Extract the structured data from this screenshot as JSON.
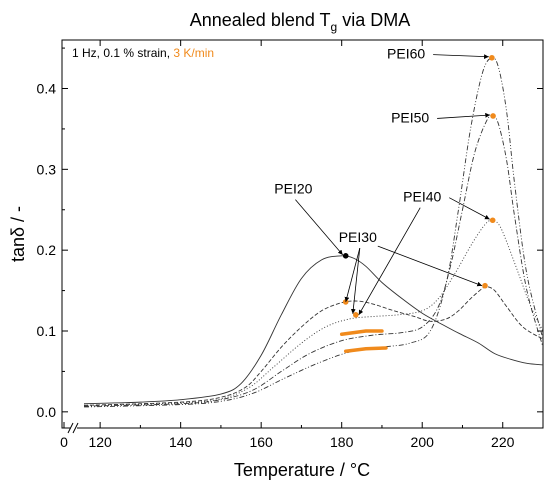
{
  "chart_data": {
    "type": "line",
    "title": "Annealed blend T",
    "title_subscript": "g",
    "title_suffix": " via DMA",
    "xlabel": "Temperature  /  °C",
    "ylabel": "tanδ  /  -",
    "xlim": [
      115,
      230
    ],
    "ylim": [
      -0.02,
      0.46
    ],
    "x_break_tick": "0",
    "x_ticks": [
      "120",
      "140",
      "160",
      "180",
      "200",
      "220"
    ],
    "y_ticks": [
      "0.0",
      "0.1",
      "0.2",
      "0.3",
      "0.4"
    ],
    "conditions": {
      "prefix": "1 Hz, 0.1 % strain, ",
      "rate": "3 K/min"
    },
    "colors": {
      "curve": "#333333",
      "marker_orange": "#f08a1c",
      "marker_black": "#000000",
      "tg_bar": "#f08a1c"
    },
    "series": [
      {
        "name": "PEI20",
        "dash": "solid",
        "points": [
          [
            116,
            0.01
          ],
          [
            130,
            0.012
          ],
          [
            140,
            0.015
          ],
          [
            150,
            0.022
          ],
          [
            155,
            0.035
          ],
          [
            160,
            0.07
          ],
          [
            165,
            0.12
          ],
          [
            170,
            0.165
          ],
          [
            175,
            0.188
          ],
          [
            180,
            0.193
          ],
          [
            183,
            0.19
          ],
          [
            186,
            0.18
          ],
          [
            190,
            0.16
          ],
          [
            195,
            0.14
          ],
          [
            200,
            0.122
          ],
          [
            205,
            0.108
          ],
          [
            208,
            0.1
          ],
          [
            210,
            0.095
          ],
          [
            214,
            0.085
          ],
          [
            218,
            0.072
          ],
          [
            222,
            0.065
          ],
          [
            226,
            0.06
          ],
          [
            230,
            0.058
          ]
        ],
        "marker": {
          "x": 181,
          "y": 0.193,
          "color": "black"
        }
      },
      {
        "name": "PEI30",
        "dash": "dashed",
        "points": [
          [
            116,
            0.008
          ],
          [
            140,
            0.012
          ],
          [
            150,
            0.018
          ],
          [
            156,
            0.03
          ],
          [
            160,
            0.05
          ],
          [
            165,
            0.08
          ],
          [
            170,
            0.105
          ],
          [
            175,
            0.125
          ],
          [
            180,
            0.135
          ],
          [
            184,
            0.137
          ],
          [
            188,
            0.133
          ],
          [
            193,
            0.125
          ],
          [
            198,
            0.118
          ],
          [
            202,
            0.112
          ],
          [
            206,
            0.115
          ],
          [
            209,
            0.125
          ],
          [
            212,
            0.14
          ],
          [
            215,
            0.153
          ],
          [
            216,
            0.155
          ],
          [
            218,
            0.15
          ],
          [
            221,
            0.13
          ],
          [
            225,
            0.105
          ],
          [
            230,
            0.09
          ]
        ],
        "marker": {
          "x": 215.6,
          "y": 0.156,
          "color": "orange"
        }
      },
      {
        "name": "PEI40",
        "dash": "dotted",
        "points": [
          [
            116,
            0.008
          ],
          [
            140,
            0.011
          ],
          [
            150,
            0.016
          ],
          [
            157,
            0.03
          ],
          [
            163,
            0.055
          ],
          [
            170,
            0.085
          ],
          [
            176,
            0.105
          ],
          [
            182,
            0.115
          ],
          [
            188,
            0.118
          ],
          [
            194,
            0.12
          ],
          [
            200,
            0.125
          ],
          [
            204,
            0.14
          ],
          [
            208,
            0.17
          ],
          [
            212,
            0.205
          ],
          [
            215,
            0.228
          ],
          [
            217,
            0.237
          ],
          [
            219,
            0.232
          ],
          [
            221,
            0.21
          ],
          [
            224,
            0.17
          ],
          [
            227,
            0.13
          ],
          [
            230,
            0.1
          ]
        ],
        "marker": {
          "x": 217.5,
          "y": 0.237,
          "color": "orange"
        }
      },
      {
        "name": "PEI50",
        "dash": "dashdot",
        "points": [
          [
            116,
            0.007
          ],
          [
            140,
            0.01
          ],
          [
            150,
            0.015
          ],
          [
            158,
            0.027
          ],
          [
            165,
            0.05
          ],
          [
            172,
            0.072
          ],
          [
            180,
            0.088
          ],
          [
            188,
            0.095
          ],
          [
            195,
            0.098
          ],
          [
            200,
            0.105
          ],
          [
            204,
            0.13
          ],
          [
            207,
            0.18
          ],
          [
            210,
            0.25
          ],
          [
            213,
            0.32
          ],
          [
            216,
            0.36
          ],
          [
            217.6,
            0.366
          ],
          [
            219,
            0.355
          ],
          [
            221,
            0.31
          ],
          [
            223,
            0.24
          ],
          [
            226,
            0.15
          ],
          [
            230,
            0.08
          ]
        ],
        "marker": {
          "x": 217.6,
          "y": 0.366,
          "color": "orange"
        }
      },
      {
        "name": "PEI60",
        "dash": "dashdotdot",
        "points": [
          [
            116,
            0.006
          ],
          [
            140,
            0.009
          ],
          [
            150,
            0.013
          ],
          [
            158,
            0.023
          ],
          [
            166,
            0.042
          ],
          [
            174,
            0.06
          ],
          [
            182,
            0.074
          ],
          [
            190,
            0.08
          ],
          [
            197,
            0.085
          ],
          [
            202,
            0.1
          ],
          [
            206,
            0.16
          ],
          [
            209,
            0.25
          ],
          [
            212,
            0.35
          ],
          [
            215,
            0.42
          ],
          [
            217.3,
            0.438
          ],
          [
            219,
            0.425
          ],
          [
            221,
            0.37
          ],
          [
            223,
            0.28
          ],
          [
            226,
            0.17
          ],
          [
            230,
            0.09
          ]
        ],
        "marker": {
          "x": 217.3,
          "y": 0.438,
          "color": "orange"
        }
      }
    ],
    "annotations": [
      {
        "label": "PEI60",
        "text_x": 196,
        "text_y": 0.437,
        "points_to": [
          217.3,
          0.438
        ]
      },
      {
        "label": "PEI50",
        "text_x": 197,
        "text_y": 0.358,
        "points_to": [
          217.6,
          0.366
        ]
      },
      {
        "label": "PEI40",
        "text_x": 200,
        "text_y": 0.26,
        "points_to": [
          217.5,
          0.237
        ]
      },
      {
        "label": "PEI30",
        "text_x": 184,
        "text_y": 0.21,
        "points_to": [
          183.5,
          0.12
        ]
      },
      {
        "label": "PEI20",
        "text_x": 168,
        "text_y": 0.27,
        "points_to": [
          181,
          0.193
        ]
      }
    ],
    "extra_markers": [
      {
        "x": 181,
        "y": 0.136,
        "color": "orange"
      },
      {
        "x": 183.5,
        "y": 0.12,
        "color": "orange"
      }
    ],
    "tg_bars": [
      {
        "x": [
          180,
          186,
          190
        ],
        "y": [
          0.096,
          0.1,
          0.1
        ]
      },
      {
        "x": [
          181,
          186,
          191
        ],
        "y": [
          0.075,
          0.078,
          0.079
        ]
      }
    ]
  }
}
